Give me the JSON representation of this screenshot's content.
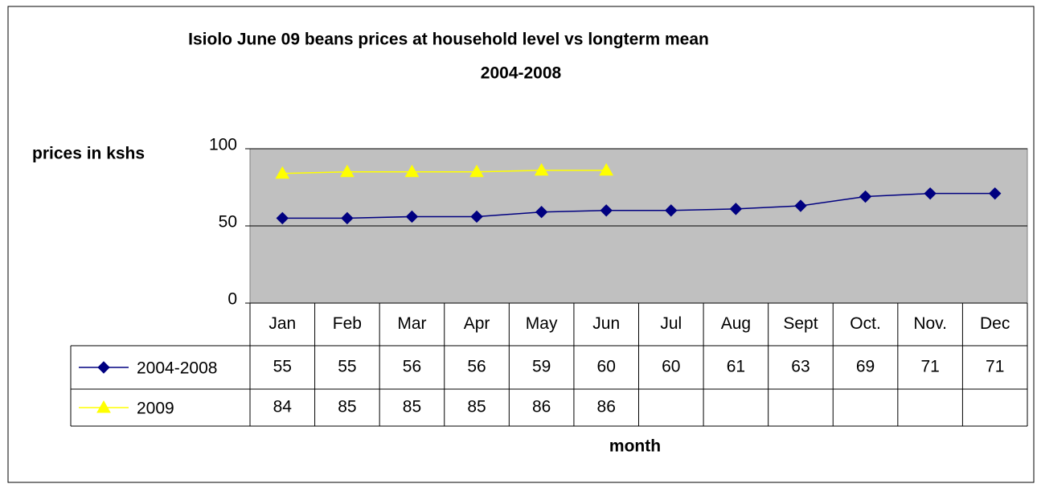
{
  "chart_data": {
    "type": "line",
    "title": [
      "Isiolo June 09 beans prices at household level vs longterm mean",
      "2004-2008"
    ],
    "y_label": "prices in kshs",
    "x_label": "month",
    "categories": [
      "Jan",
      "Feb",
      "Mar",
      "Apr",
      "May",
      "Jun",
      "Jul",
      "Aug",
      "Sept",
      "Oct.",
      "Nov.",
      "Dec"
    ],
    "series": [
      {
        "name": "2004-2008",
        "color": "#000080",
        "marker": "diamond",
        "values": [
          55,
          55,
          56,
          56,
          59,
          60,
          60,
          61,
          63,
          69,
          71,
          71
        ]
      },
      {
        "name": "2009",
        "color": "#ffff00",
        "marker": "triangle",
        "values": [
          84,
          85,
          85,
          85,
          86,
          86,
          null,
          null,
          null,
          null,
          null,
          null
        ]
      }
    ],
    "ylim": [
      0,
      100
    ],
    "yticks": [
      0,
      50,
      100
    ],
    "grid": true,
    "plot_background": "#c0c0c0",
    "data_table": true
  }
}
